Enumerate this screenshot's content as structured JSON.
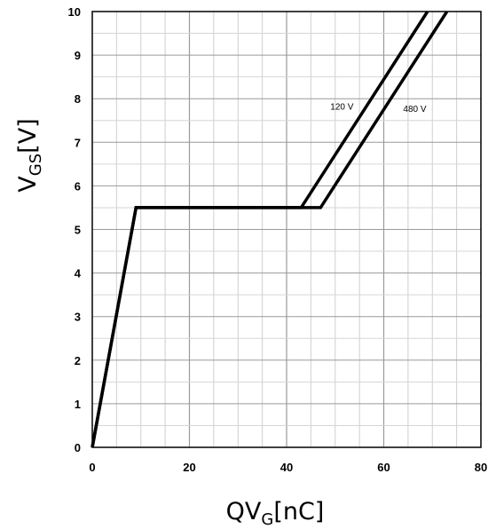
{
  "chart_data": {
    "type": "line",
    "title": "",
    "xlabel": {
      "main": "QV",
      "sub": "G",
      "unit": "[nC]"
    },
    "ylabel": {
      "main": "V",
      "sub": "GS",
      "unit": "[V]"
    },
    "xlim": [
      0,
      80
    ],
    "ylim": [
      0,
      10
    ],
    "x_ticks": [
      0,
      20,
      40,
      60,
      80
    ],
    "y_ticks": [
      0,
      1,
      2,
      3,
      4,
      5,
      6,
      7,
      8,
      9,
      10
    ],
    "grid": true,
    "series": [
      {
        "name": "120 V",
        "x": [
          0,
          9,
          43,
          69
        ],
        "y": [
          0,
          5.5,
          5.5,
          10
        ]
      },
      {
        "name": "480 V",
        "x": [
          0,
          9,
          47,
          73
        ],
        "y": [
          0,
          5.5,
          5.5,
          10
        ]
      }
    ],
    "annotations": [
      {
        "text": "120 V",
        "x": 49,
        "y": 7.75
      },
      {
        "text": "480 V",
        "x": 64,
        "y": 7.7
      }
    ]
  }
}
